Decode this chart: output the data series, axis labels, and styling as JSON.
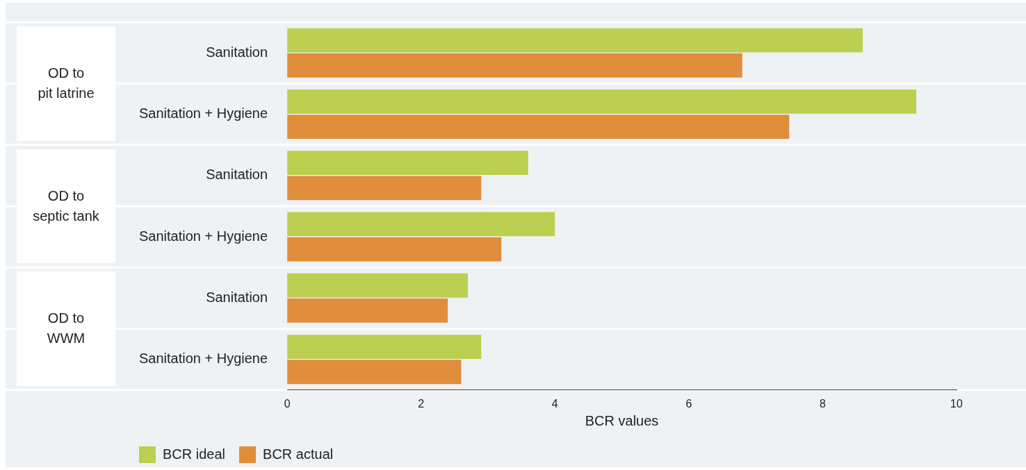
{
  "chart_data": {
    "type": "bar",
    "orientation": "horizontal",
    "xlabel": "BCR values",
    "categories": [
      "Sanitation",
      "Sanitation + Hygiene",
      "Sanitation",
      "Sanitation + Hygiene",
      "Sanitation",
      "Sanitation + Hygiene"
    ],
    "series": [
      {
        "name": "BCR ideal",
        "color": "#bccf50",
        "values": [
          8.6,
          9.4,
          3.6,
          4.0,
          2.7,
          2.9
        ]
      },
      {
        "name": "BCR actual",
        "color": "#e08d3c",
        "values": [
          6.8,
          7.5,
          2.9,
          3.2,
          2.4,
          2.6
        ]
      }
    ],
    "xlim": [
      0,
      10
    ],
    "xticks": [
      0,
      2,
      4,
      6,
      8,
      10
    ],
    "grid": false,
    "legend": "bottom",
    "annotations": [
      "OD to\npit latrine",
      "OD to\nseptic tank",
      "OD to\nWWM"
    ]
  }
}
